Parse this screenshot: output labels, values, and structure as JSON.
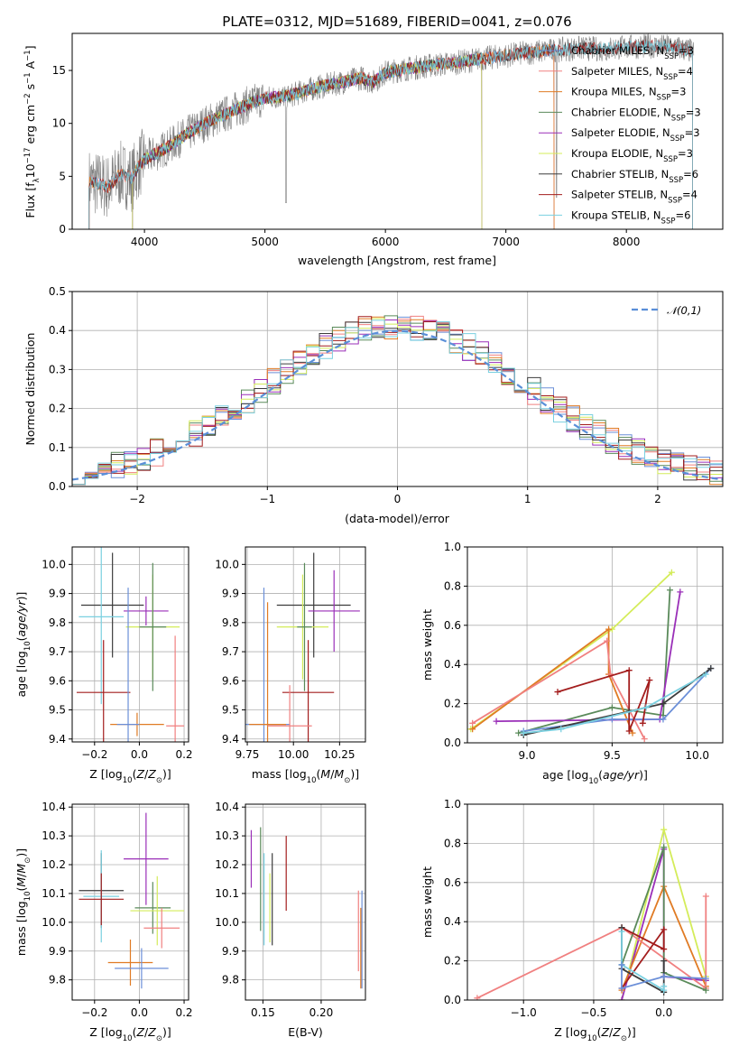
{
  "title": "PLATE=0312, MJD=51689, FIBERID=0041, z=0.076",
  "colors": {
    "chabrier_miles": "#6b8fd8",
    "salpeter_miles": "#f08080",
    "kroupa_miles": "#e07b24",
    "chabrier_elodie": "#5a8a5a",
    "salpeter_elodie": "#9a2fb8",
    "kroupa_elodie": "#d4ec5a",
    "chabrier_stelib": "#3c3c3c",
    "salpeter_stelib": "#a31d1d",
    "kroupa_stelib": "#7ad0e0",
    "data": "#808080",
    "gaussian": "#5a8fd8"
  },
  "chart_data": [
    {
      "id": "spectrum",
      "type": "line",
      "xlabel": "wavelength [Angstrom, rest frame]",
      "ylabel": "Flux [f_λ10^-17 erg cm^-2 s^-1 A^-1]",
      "xlim": [
        3400,
        8800
      ],
      "ylim": [
        0,
        18.5
      ],
      "xticks": [
        4000,
        5000,
        6000,
        7000,
        8000
      ],
      "yticks": [
        0,
        5,
        10,
        15
      ],
      "grid": false,
      "legend": "upper-right",
      "legend_entries": [
        {
          "key": "chabrier_miles",
          "base": "Chabrier MILES, N",
          "sub": "SSP",
          "tail": "=3"
        },
        {
          "key": "salpeter_miles",
          "base": "Salpeter MILES, N",
          "sub": "SSP",
          "tail": "=4"
        },
        {
          "key": "kroupa_miles",
          "base": "Kroupa MILES, N",
          "sub": "SSP",
          "tail": "=3"
        },
        {
          "key": "chabrier_elodie",
          "base": "Chabrier ELODIE, N",
          "sub": "SSP",
          "tail": "=3"
        },
        {
          "key": "salpeter_elodie",
          "base": "Salpeter ELODIE, N",
          "sub": "SSP",
          "tail": "=3"
        },
        {
          "key": "kroupa_elodie",
          "base": "Kroupa ELODIE, N",
          "sub": "SSP",
          "tail": "=3"
        },
        {
          "key": "chabrier_stelib",
          "base": "Chabrier STELIB, N",
          "sub": "SSP",
          "tail": "=6"
        },
        {
          "key": "salpeter_stelib",
          "base": "Salpeter STELIB, N",
          "sub": "SSP",
          "tail": "=4"
        },
        {
          "key": "kroupa_stelib",
          "base": "Kroupa STELIB, N",
          "sub": "SSP",
          "tail": "=6"
        }
      ],
      "continuum": [
        [
          3550,
          4.5
        ],
        [
          3700,
          4.0
        ],
        [
          3800,
          5.2
        ],
        [
          3900,
          4.8
        ],
        [
          3950,
          6.0
        ],
        [
          4000,
          6.6
        ],
        [
          4100,
          7.2
        ],
        [
          4200,
          7.8
        ],
        [
          4300,
          8.6
        ],
        [
          4500,
          10.0
        ],
        [
          4700,
          11.0
        ],
        [
          4860,
          11.8
        ],
        [
          5000,
          12.4
        ],
        [
          5200,
          12.6
        ],
        [
          5400,
          13.3
        ],
        [
          5600,
          13.8
        ],
        [
          5800,
          14.3
        ],
        [
          5900,
          13.9
        ],
        [
          6000,
          14.8
        ],
        [
          6200,
          15.2
        ],
        [
          6400,
          15.5
        ],
        [
          6563,
          15.7
        ],
        [
          6800,
          16.1
        ],
        [
          7000,
          16.4
        ],
        [
          7200,
          16.7
        ],
        [
          7400,
          16.9
        ],
        [
          7600,
          17.1
        ],
        [
          7800,
          17.0
        ],
        [
          8000,
          17.2
        ],
        [
          8200,
          17.3
        ],
        [
          8400,
          17.2
        ],
        [
          8550,
          16.8
        ]
      ]
    },
    {
      "id": "residuals",
      "type": "histogram",
      "xlabel": "(data-model)/error",
      "ylabel": "Normed distribution",
      "xlim": [
        -2.5,
        2.5
      ],
      "ylim": [
        0,
        0.5
      ],
      "xticks": [
        -2,
        -1,
        0,
        1,
        2
      ],
      "yticks": [
        0.0,
        0.1,
        0.2,
        0.3,
        0.4,
        0.5
      ],
      "bin_width": 0.1,
      "grid": true,
      "legend": "upper-right",
      "legend_label": "𝒩(0,1)"
    },
    {
      "id": "age_vs_Z",
      "type": "errorbar",
      "xlabel": "Z [log10(Z/Z⊙)]",
      "ylabel": "age  [log10(age/yr)]",
      "xlim": [
        -0.3,
        0.22
      ],
      "ylim": [
        9.39,
        10.06
      ],
      "xticks": [
        -0.2,
        0.0,
        0.2
      ],
      "yticks": [
        9.4,
        9.5,
        9.6,
        9.7,
        9.8,
        9.9,
        10.0
      ],
      "points": [
        {
          "k": "chabrier_stelib",
          "x": -0.12,
          "xe": 0.14,
          "y": 9.86,
          "ye": 0.18
        },
        {
          "k": "kroupa_stelib",
          "x": -0.17,
          "xe": 0.1,
          "y": 9.82,
          "ye": 0.3
        },
        {
          "k": "salpeter_stelib",
          "x": -0.16,
          "xe": 0.12,
          "y": 9.56,
          "ye": 0.18
        },
        {
          "k": "salpeter_elodie",
          "x": 0.03,
          "xe": 0.1,
          "y": 9.84,
          "ye": 0.05
        },
        {
          "k": "kroupa_elodie",
          "x": 0.06,
          "xe": 0.12,
          "y": 9.785,
          "ye": 0.18
        },
        {
          "k": "chabrier_elodie",
          "x": 0.06,
          "xe": 0.06,
          "y": 9.785,
          "ye": 0.22
        },
        {
          "k": "kroupa_miles",
          "x": -0.01,
          "xe": 0.12,
          "y": 9.45,
          "ye": 0.04
        },
        {
          "k": "chabrier_miles",
          "x": -0.05,
          "xe": 0.05,
          "y": 9.45,
          "ye": 0.47
        },
        {
          "k": "salpeter_miles",
          "x": 0.16,
          "xe": 0.04,
          "y": 9.445,
          "ye": 0.31
        }
      ]
    },
    {
      "id": "age_vs_mass",
      "type": "errorbar",
      "xlabel": "mass [log10(M/M⊙)]",
      "ylabel": "",
      "xlim": [
        9.74,
        10.39
      ],
      "ylim": [
        9.39,
        10.06
      ],
      "xticks": [
        9.75,
        10.0,
        10.25
      ],
      "yticks": [
        9.4,
        9.5,
        9.6,
        9.7,
        9.8,
        9.9,
        10.0
      ],
      "points": [
        {
          "k": "chabrier_stelib",
          "x": 10.11,
          "xe": 0.2,
          "y": 9.86,
          "ye": 0.18
        },
        {
          "k": "salpeter_elodie",
          "x": 10.22,
          "xe": 0.14,
          "y": 9.84,
          "ye": 0.14
        },
        {
          "k": "kroupa_elodie",
          "x": 10.05,
          "xe": 0.14,
          "y": 9.785,
          "ye": 0.18
        },
        {
          "k": "chabrier_elodie",
          "x": 10.06,
          "xe": 0.04,
          "y": 9.785,
          "ye": 0.22
        },
        {
          "k": "salpeter_stelib",
          "x": 10.08,
          "xe": 0.14,
          "y": 9.56,
          "ye": 0.18
        },
        {
          "k": "chabrier_miles",
          "x": 9.84,
          "xe": 0.14,
          "y": 9.45,
          "ye": 0.47
        },
        {
          "k": "kroupa_miles",
          "x": 9.86,
          "xe": 0.1,
          "y": 9.45,
          "ye": 0.42
        },
        {
          "k": "salpeter_miles",
          "x": 9.98,
          "xe": 0.12,
          "y": 9.445,
          "ye": 0.14
        }
      ]
    },
    {
      "id": "weight_vs_age",
      "type": "line",
      "xlabel": "age  [log10(age/yr)]",
      "ylabel": "mass weight",
      "xlim": [
        8.65,
        10.15
      ],
      "ylim": [
        0,
        1.0
      ],
      "xticks": [
        9.0,
        9.5,
        10.0
      ],
      "yticks": [
        0.0,
        0.2,
        0.4,
        0.6,
        0.8,
        1.0
      ],
      "grid": true,
      "series": [
        {
          "k": "chabrier_elodie",
          "x": [
            8.95,
            9.5,
            9.8,
            9.84
          ],
          "y": [
            0.05,
            0.18,
            0.14,
            0.78
          ]
        },
        {
          "k": "salpeter_elodie",
          "x": [
            8.82,
            9.78,
            9.9
          ],
          "y": [
            0.11,
            0.12,
            0.77
          ]
        },
        {
          "k": "kroupa_elodie",
          "x": [
            8.67,
            9.5,
            9.85
          ],
          "y": [
            0.07,
            0.58,
            0.87
          ]
        },
        {
          "k": "kroupa_miles",
          "x": [
            8.68,
            9.48,
            9.48,
            9.62
          ],
          "y": [
            0.07,
            0.58,
            0.35,
            0.05
          ]
        },
        {
          "k": "salpeter_miles",
          "x": [
            8.68,
            9.47,
            9.49,
            9.69
          ],
          "y": [
            0.1,
            0.52,
            0.35,
            0.02
          ]
        },
        {
          "k": "chabrier_miles",
          "x": [
            8.98,
            9.5,
            9.8,
            10.08
          ],
          "y": [
            0.06,
            0.12,
            0.12,
            0.38
          ]
        },
        {
          "k": "salpeter_stelib",
          "x": [
            9.18,
            9.6,
            9.6,
            9.72,
            9.68
          ],
          "y": [
            0.26,
            0.37,
            0.06,
            0.32,
            0.1
          ]
        },
        {
          "k": "chabrier_stelib",
          "x": [
            8.98,
            9.6,
            9.8,
            10.08
          ],
          "y": [
            0.04,
            0.16,
            0.2,
            0.38
          ]
        },
        {
          "k": "kroupa_stelib",
          "x": [
            8.98,
            9.2,
            9.7,
            10.05
          ],
          "y": [
            0.05,
            0.07,
            0.18,
            0.35
          ]
        }
      ]
    },
    {
      "id": "mass_vs_Z",
      "type": "errorbar",
      "xlabel": "Z [log10(Z/Z⊙)]",
      "ylabel": "mass [log10(M/M⊙)]",
      "xlim": [
        -0.3,
        0.22
      ],
      "ylim": [
        9.73,
        10.41
      ],
      "xticks": [
        -0.2,
        0.0,
        0.2
      ],
      "yticks": [
        9.8,
        9.9,
        10.0,
        10.1,
        10.2,
        10.3,
        10.4
      ],
      "points": [
        {
          "k": "salpeter_elodie",
          "x": 0.03,
          "xe": 0.1,
          "y": 10.22,
          "ye": 0.16
        },
        {
          "k": "chabrier_stelib",
          "x": -0.17,
          "xe": 0.1,
          "y": 10.11,
          "ye": 0.13
        },
        {
          "k": "kroupa_stelib",
          "x": -0.17,
          "xe": 0.08,
          "y": 10.09,
          "ye": 0.16
        },
        {
          "k": "salpeter_stelib",
          "x": -0.17,
          "xe": 0.1,
          "y": 10.08,
          "ye": 0.09
        },
        {
          "k": "chabrier_elodie",
          "x": 0.06,
          "xe": 0.08,
          "y": 10.05,
          "ye": 0.09
        },
        {
          "k": "kroupa_elodie",
          "x": 0.08,
          "xe": 0.12,
          "y": 10.04,
          "ye": 0.12
        },
        {
          "k": "salpeter_miles",
          "x": 0.1,
          "xe": 0.08,
          "y": 9.98,
          "ye": 0.07
        },
        {
          "k": "kroupa_miles",
          "x": -0.04,
          "xe": 0.1,
          "y": 9.86,
          "ye": 0.08
        },
        {
          "k": "chabrier_miles",
          "x": 0.01,
          "xe": 0.12,
          "y": 9.84,
          "ye": 0.07
        }
      ]
    },
    {
      "id": "mass_vs_ebv",
      "type": "errorbar",
      "xlabel": "E(B-V)",
      "ylabel": "",
      "xlim": [
        0.135,
        0.238
      ],
      "ylim": [
        9.73,
        10.41
      ],
      "xticks": [
        0.15,
        0.2
      ],
      "yticks": [
        9.8,
        9.9,
        10.0,
        10.1,
        10.2,
        10.3,
        10.4
      ],
      "points": [
        {
          "k": "salpeter_elodie",
          "x": 0.14,
          "xe": 0,
          "y": 10.22,
          "ye": 0.1
        },
        {
          "k": "chabrier_elodie",
          "x": 0.148,
          "xe": 0,
          "y": 10.15,
          "ye": 0.18
        },
        {
          "k": "kroupa_stelib",
          "x": 0.151,
          "xe": 0,
          "y": 10.08,
          "ye": 0.16
        },
        {
          "k": "kroupa_elodie",
          "x": 0.156,
          "xe": 0,
          "y": 10.05,
          "ye": 0.12
        },
        {
          "k": "chabrier_stelib",
          "x": 0.158,
          "xe": 0,
          "y": 10.08,
          "ye": 0.16
        },
        {
          "k": "salpeter_stelib",
          "x": 0.17,
          "xe": 0,
          "y": 10.17,
          "ye": 0.13
        },
        {
          "k": "salpeter_miles",
          "x": 0.232,
          "xe": 0,
          "y": 9.97,
          "ye": 0.14
        },
        {
          "k": "kroupa_miles",
          "x": 0.234,
          "xe": 0,
          "y": 9.91,
          "ye": 0.14
        },
        {
          "k": "chabrier_miles",
          "x": 0.235,
          "xe": 0,
          "y": 9.94,
          "ye": 0.17
        }
      ]
    },
    {
      "id": "weight_vs_Z",
      "type": "line",
      "xlabel": "Z [log10(Z/Z⊙)]",
      "ylabel": "mass weight",
      "xlim": [
        -1.4,
        0.42
      ],
      "ylim": [
        0,
        1.0
      ],
      "xticks": [
        -1.0,
        -0.5,
        0.0
      ],
      "yticks": [
        0.0,
        0.2,
        0.4,
        0.6,
        0.8,
        1.0
      ],
      "grid": true,
      "series": [
        {
          "k": "kroupa_elodie",
          "x": [
            -0.3,
            0.0,
            0.3
          ],
          "y": [
            0.0,
            0.87,
            0.12
          ]
        },
        {
          "k": "salpeter_elodie",
          "x": [
            -0.3,
            0.0,
            0.0,
            0.3
          ],
          "y": [
            0.0,
            0.77,
            0.12,
            0.1
          ]
        },
        {
          "k": "kroupa_miles",
          "x": [
            -0.3,
            0.0,
            0.3
          ],
          "y": [
            0.05,
            0.58,
            0.07
          ]
        },
        {
          "k": "salpeter_miles",
          "x": [
            -1.33,
            -0.3,
            0.3,
            0.3
          ],
          "y": [
            0.01,
            0.37,
            0.06,
            0.53
          ]
        },
        {
          "k": "chabrier_elodie",
          "x": [
            -0.3,
            0.0,
            0.0,
            0.3
          ],
          "y": [
            0.18,
            0.78,
            0.14,
            0.05
          ]
        },
        {
          "k": "salpeter_stelib",
          "x": [
            -0.3,
            0.0,
            0.0,
            -0.3
          ],
          "y": [
            0.06,
            0.36,
            0.26,
            0.37
          ]
        },
        {
          "k": "chabrier_stelib",
          "x": [
            -0.3,
            -0.3,
            0.0,
            0.0
          ],
          "y": [
            0.37,
            0.16,
            0.04,
            0.2
          ]
        },
        {
          "k": "kroupa_stelib",
          "x": [
            -0.3,
            -0.3,
            0.0,
            0.0
          ],
          "y": [
            0.35,
            0.18,
            0.05,
            0.07
          ]
        },
        {
          "k": "chabrier_miles",
          "x": [
            -0.3,
            -0.3,
            0.0,
            0.3
          ],
          "y": [
            0.18,
            0.06,
            0.12,
            0.11
          ]
        }
      ]
    }
  ]
}
